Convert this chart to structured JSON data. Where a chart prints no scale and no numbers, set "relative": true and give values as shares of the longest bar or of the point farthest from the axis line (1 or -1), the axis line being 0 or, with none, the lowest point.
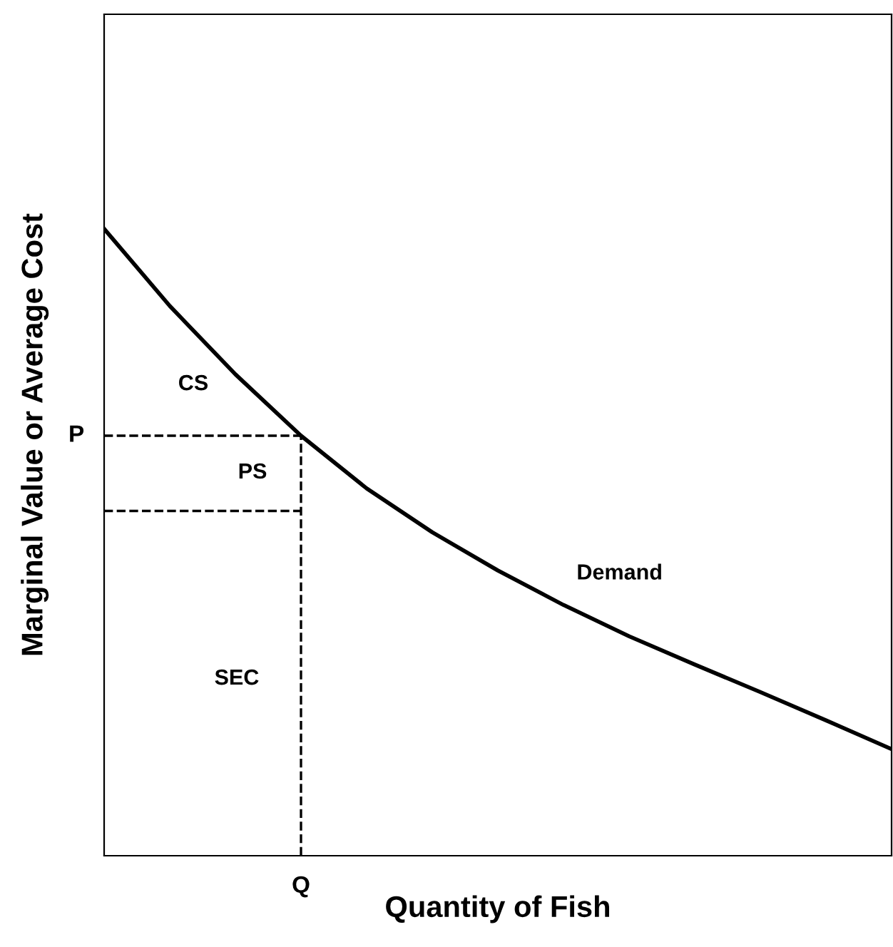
{
  "chart_data": {
    "type": "line",
    "relative": true,
    "xlabel": "Quantity of Fish",
    "ylabel": "Marginal Value or Average Cost",
    "categories": [
      null,
      null,
      null,
      null,
      null,
      null,
      null,
      null,
      null,
      null,
      null,
      null,
      null
    ],
    "series": [
      {
        "color": "#000000",
        "values": [
          1.0,
          0.877,
          0.768,
          0.67,
          0.586,
          0.516,
          0.455,
          0.4,
          0.35,
          0.305,
          0.261,
          0.216,
          0.17
        ]
      }
    ],
    "ref_lines": [
      {
        "axis": "y",
        "value": 0.67,
        "label": "P",
        "line_style": "dashed",
        "color": "#000000"
      },
      {
        "axis": "y",
        "value": 0.55,
        "line_style": "dashed",
        "color": "#000000"
      },
      {
        "axis": "x",
        "label": "Q",
        "line_style": "dashed",
        "color": "#000000"
      }
    ],
    "annotations": [
      "CS",
      "PS",
      "SEC",
      "Demand"
    ],
    "legend": false,
    "marker": "none",
    "line_style": "solid"
  }
}
